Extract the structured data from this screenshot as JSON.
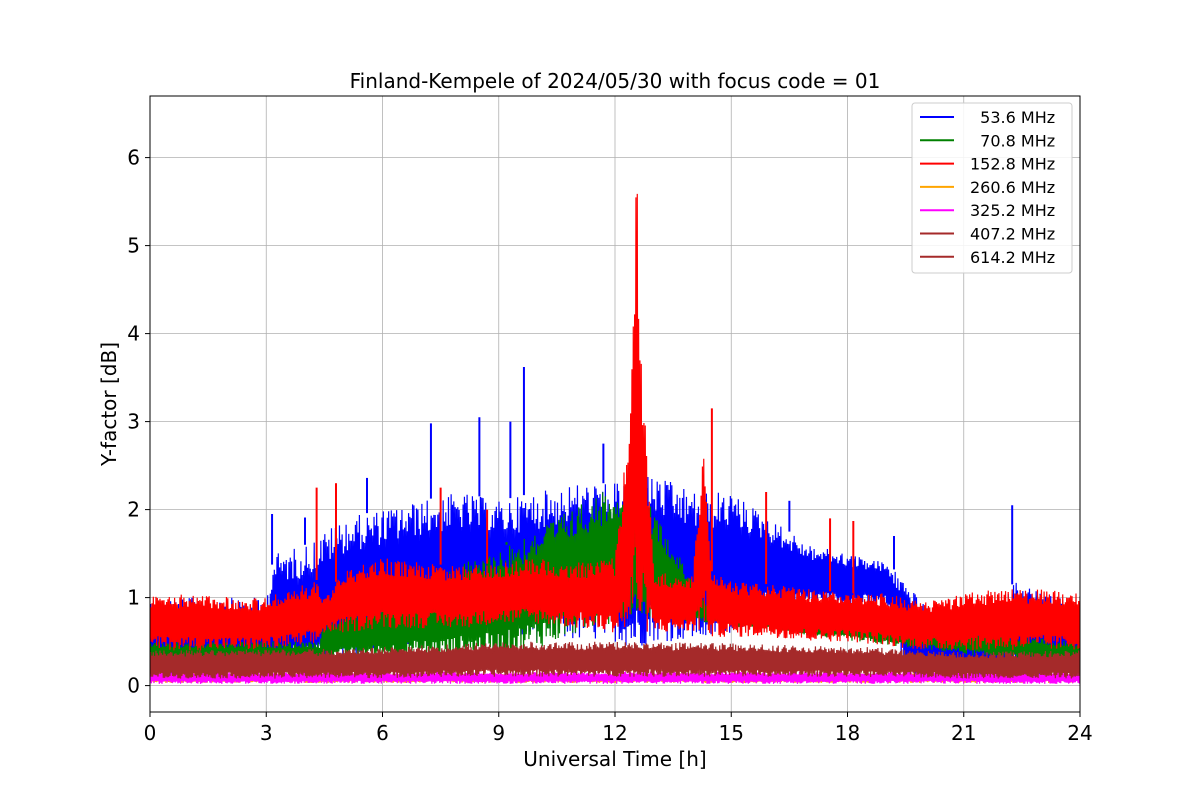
{
  "chart_data": {
    "type": "line",
    "title": "Finland-Kempele of 2024/05/30 with focus code = 01",
    "xlabel": "Universal Time [h]",
    "ylabel": "Y-factor [dB]",
    "xlim": [
      0,
      24
    ],
    "ylim": [
      -0.3,
      6.7
    ],
    "xticks": [
      0,
      3,
      6,
      9,
      12,
      15,
      18,
      21,
      24
    ],
    "yticks": [
      0,
      1,
      2,
      3,
      4,
      5,
      6
    ],
    "grid": true,
    "legend_position": "top-right",
    "series": [
      {
        "name": "  53.6 MHz",
        "color": "#0000ff",
        "envelope_x": [
          0,
          3,
          3.2,
          4,
          5,
          6,
          7,
          8,
          9,
          10,
          11,
          12,
          12.5,
          13,
          14,
          14.5,
          15,
          16,
          17,
          18,
          19,
          19.5,
          20,
          22,
          22.3,
          24
        ],
        "upper": [
          1.0,
          1.0,
          1.5,
          1.6,
          1.9,
          2.0,
          2.1,
          2.2,
          2.1,
          2.2,
          2.3,
          2.3,
          2.4,
          2.4,
          2.2,
          2.2,
          2.2,
          1.9,
          1.6,
          1.5,
          1.4,
          1.2,
          0.9,
          0.9,
          1.2,
          0.9
        ],
        "lower": [
          0.05,
          0.05,
          0.1,
          0.1,
          0.3,
          0.4,
          0.5,
          0.5,
          0.5,
          0.5,
          0.5,
          0.5,
          0.4,
          0.5,
          0.5,
          0.5,
          0.6,
          0.8,
          0.9,
          0.9,
          0.9,
          0.1,
          0.1,
          0.1,
          0.1,
          0.05
        ],
        "peaks": [
          [
            3.15,
            1.95
          ],
          [
            4.0,
            1.91
          ],
          [
            5.6,
            2.36
          ],
          [
            7.25,
            2.98
          ],
          [
            8.5,
            3.05
          ],
          [
            9.3,
            3.0
          ],
          [
            9.65,
            3.62
          ],
          [
            11.7,
            2.75
          ],
          [
            16.5,
            2.1
          ],
          [
            19.2,
            1.7
          ],
          [
            22.25,
            2.05
          ]
        ]
      },
      {
        "name": "  70.8 MHz",
        "color": "#008000",
        "envelope_x": [
          0,
          4.4,
          4.45,
          9.2,
          12.5,
          12.6,
          14.4,
          14.45,
          24
        ],
        "upper": [
          0.5,
          0.5,
          0.7,
          1.6,
          2.4,
          2.3,
          0.9,
          0.9,
          0.5
        ],
        "lower": [
          0.2,
          0.2,
          0.3,
          0.3,
          0.8,
          0.8,
          0.7,
          0.7,
          0.2
        ],
        "peaks": [
          [
            9.2,
            1.63
          ],
          [
            12.55,
            2.4
          ]
        ]
      },
      {
        "name": "152.8 MHz",
        "color": "#ff0000",
        "envelope_x": [
          0,
          3,
          4.3,
          4.5,
          5,
          6,
          7,
          8,
          9,
          10,
          11,
          12,
          12.4,
          12.55,
          12.7,
          13,
          14,
          14.3,
          14.5,
          15,
          16,
          17,
          18,
          19,
          20,
          21,
          22,
          23,
          24
        ],
        "upper": [
          1.05,
          1.0,
          1.2,
          1.0,
          1.3,
          1.45,
          1.4,
          1.35,
          1.4,
          1.45,
          1.4,
          1.45,
          3.2,
          6.35,
          3.6,
          1.3,
          1.25,
          2.9,
          1.3,
          1.2,
          1.15,
          1.1,
          1.05,
          1.05,
          0.95,
          1.05,
          1.1,
          1.1,
          1.05
        ],
        "lower": [
          0.4,
          0.4,
          0.45,
          0.6,
          0.6,
          0.65,
          0.65,
          0.65,
          0.7,
          0.7,
          0.65,
          0.6,
          0.55,
          0.55,
          0.6,
          0.6,
          0.6,
          0.6,
          0.55,
          0.55,
          0.55,
          0.5,
          0.5,
          0.45,
          0.4,
          0.4,
          0.4,
          0.4,
          0.4
        ],
        "peaks": [
          [
            4.3,
            2.25
          ],
          [
            4.8,
            2.3
          ],
          [
            7.5,
            2.25
          ],
          [
            8.7,
            2.0
          ],
          [
            14.5,
            3.15
          ],
          [
            15.9,
            2.2
          ],
          [
            17.55,
            1.9
          ],
          [
            18.15,
            1.87
          ]
        ]
      },
      {
        "name": "260.6 MHz",
        "color": "#ffa500",
        "envelope_x": [
          0,
          24
        ],
        "upper": [
          0.14,
          0.14
        ],
        "lower": [
          0.03,
          0.03
        ],
        "peaks": []
      },
      {
        "name": "325.2 MHz",
        "color": "#ff00ff",
        "envelope_x": [
          0,
          24
        ],
        "upper": [
          0.16,
          0.16
        ],
        "lower": [
          0.02,
          0.02
        ],
        "peaks": []
      },
      {
        "name": "407.2 MHz",
        "color": "#a52a2a",
        "envelope_x": [
          0,
          5,
          9,
          12,
          15,
          18,
          21,
          24
        ],
        "upper": [
          0.4,
          0.42,
          0.5,
          0.5,
          0.48,
          0.45,
          0.38,
          0.4
        ],
        "lower": [
          0.1,
          0.1,
          0.12,
          0.12,
          0.12,
          0.12,
          0.1,
          0.1
        ],
        "peaks": []
      },
      {
        "name": "614.2 MHz",
        "color": "#a52a2a",
        "envelope_x": [
          0,
          5,
          9,
          12,
          15,
          18,
          21,
          24
        ],
        "upper": [
          0.35,
          0.38,
          0.45,
          0.45,
          0.42,
          0.4,
          0.35,
          0.35
        ],
        "lower": [
          0.08,
          0.08,
          0.1,
          0.1,
          0.1,
          0.1,
          0.08,
          0.08
        ],
        "peaks": []
      }
    ]
  }
}
